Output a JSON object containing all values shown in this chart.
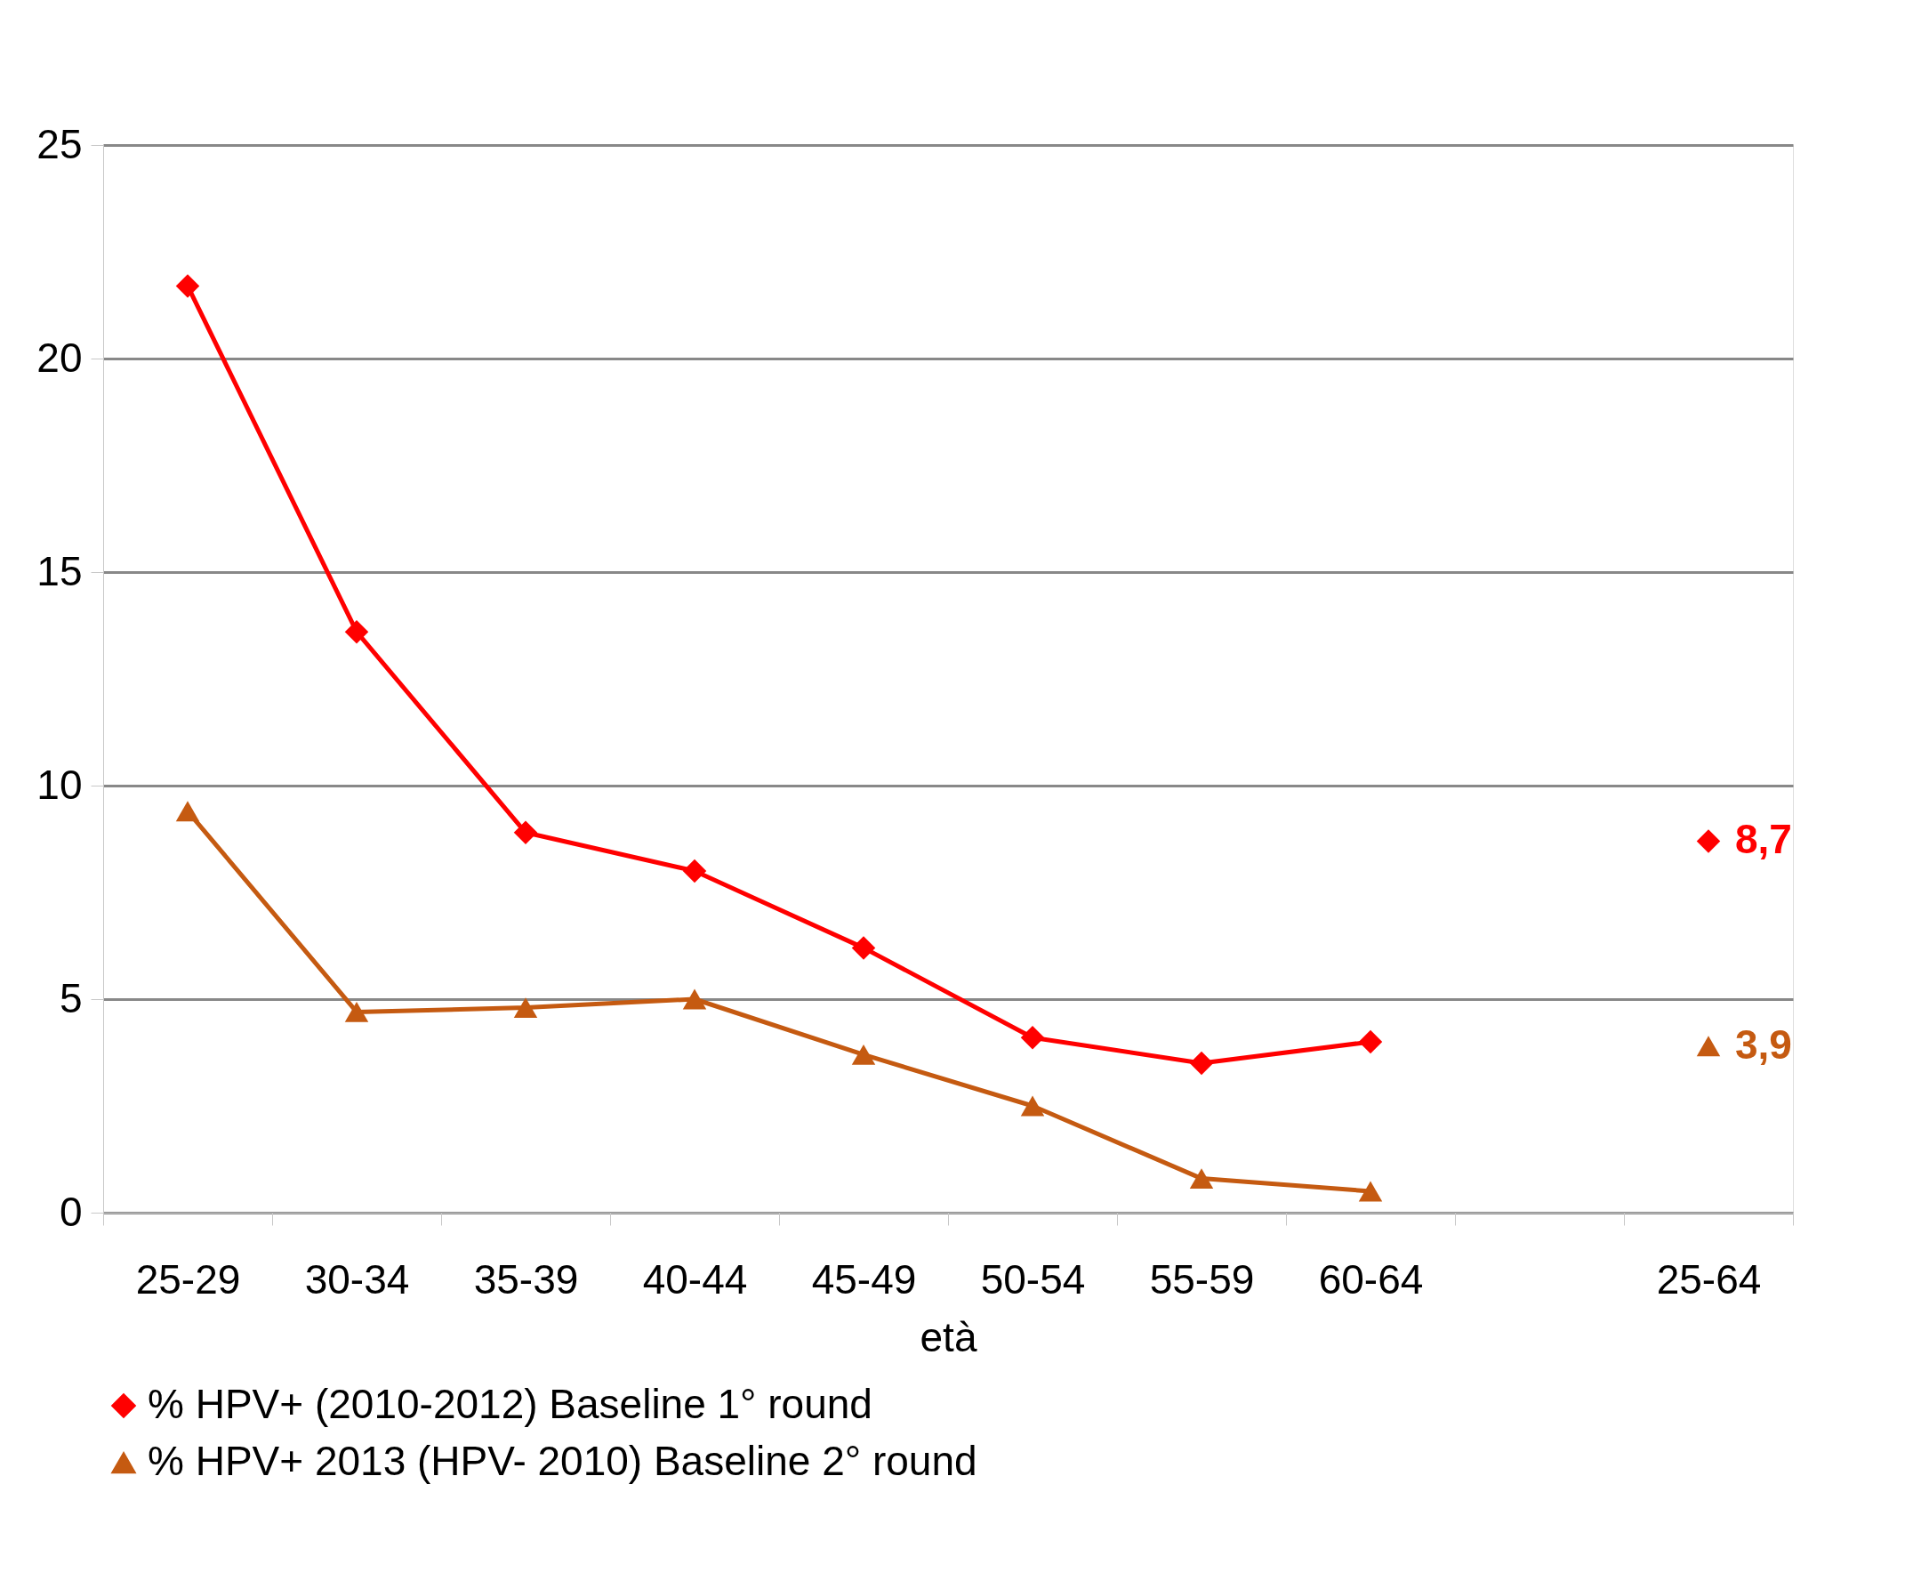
{
  "chart_data": {
    "type": "line",
    "xlabel": "età",
    "categories": [
      "25-29",
      "30-34",
      "35-39",
      "40-44",
      "45-49",
      "50-54",
      "55-59",
      "60-64",
      null,
      "25-64"
    ],
    "series": [
      {
        "name": "% HPV+ (2010-2012) Baseline 1° round",
        "color": "#ff0000",
        "marker": "diamond",
        "values": [
          21.7,
          13.6,
          8.9,
          8.0,
          6.2,
          4.1,
          3.5,
          4.0,
          null,
          8.7
        ],
        "value_labels": [
          null,
          null,
          null,
          null,
          null,
          null,
          null,
          null,
          null,
          "8,7"
        ]
      },
      {
        "name": "% HPV+ 2013 (HPV- 2010) Baseline 2° round",
        "color": "#c55a11",
        "marker": "triangle",
        "values": [
          9.4,
          4.7,
          4.8,
          5.0,
          3.7,
          2.5,
          0.8,
          0.5,
          null,
          3.9
        ],
        "value_labels": [
          null,
          null,
          null,
          null,
          null,
          null,
          null,
          null,
          null,
          "3,9"
        ]
      }
    ],
    "ylim": [
      0,
      25
    ],
    "yticks": [
      0,
      5,
      10,
      15,
      20,
      25
    ],
    "grid": "y",
    "legend": "bottom",
    "line_style": "solid"
  }
}
